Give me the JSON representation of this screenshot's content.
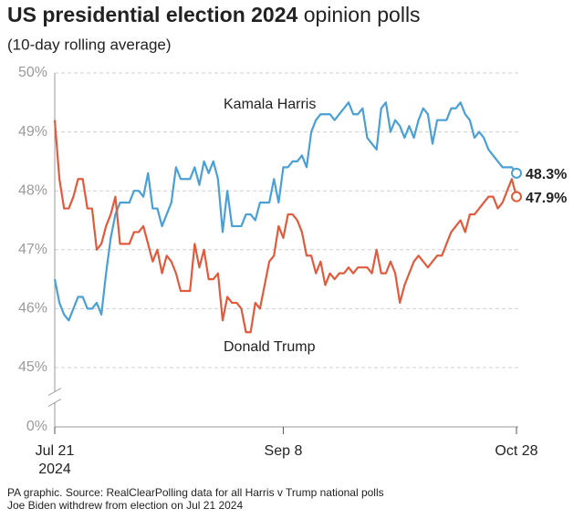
{
  "chart_data": {
    "type": "line",
    "title": {
      "bold": "US presidential election 2024",
      "regular": "opinion polls"
    },
    "subtitle": "(10-day rolling average)",
    "xlim": [
      "2024-07-21",
      "2024-10-28"
    ],
    "xticks": [
      {
        "value": "2024-07-21",
        "label": "Jul 21"
      },
      {
        "value": "2024-09-08",
        "label": "Sep 8"
      },
      {
        "value": "2024-10-28",
        "label": "Oct 28"
      }
    ],
    "x_year_label": "2024",
    "ylim": [
      45,
      50
    ],
    "yticks": [
      {
        "value": 0,
        "label": "0%"
      },
      {
        "value": 45,
        "label": "45%"
      },
      {
        "value": 46,
        "label": "46%"
      },
      {
        "value": 47,
        "label": "47%"
      },
      {
        "value": 48,
        "label": "48%"
      },
      {
        "value": 49,
        "label": "49%"
      },
      {
        "value": 50,
        "label": "50%"
      }
    ],
    "axis_break": true,
    "grid": true,
    "x": [
      "2024-07-21",
      "2024-07-22",
      "2024-07-23",
      "2024-07-24",
      "2024-07-25",
      "2024-07-26",
      "2024-07-27",
      "2024-07-28",
      "2024-07-29",
      "2024-07-30",
      "2024-07-31",
      "2024-08-01",
      "2024-08-02",
      "2024-08-03",
      "2024-08-04",
      "2024-08-05",
      "2024-08-06",
      "2024-08-07",
      "2024-08-08",
      "2024-08-09",
      "2024-08-10",
      "2024-08-11",
      "2024-08-12",
      "2024-08-13",
      "2024-08-14",
      "2024-08-15",
      "2024-08-16",
      "2024-08-17",
      "2024-08-18",
      "2024-08-19",
      "2024-08-20",
      "2024-08-21",
      "2024-08-22",
      "2024-08-23",
      "2024-08-24",
      "2024-08-25",
      "2024-08-26",
      "2024-08-27",
      "2024-08-28",
      "2024-08-29",
      "2024-08-30",
      "2024-08-31",
      "2024-09-01",
      "2024-09-02",
      "2024-09-03",
      "2024-09-04",
      "2024-09-05",
      "2024-09-06",
      "2024-09-07",
      "2024-09-08",
      "2024-09-09",
      "2024-09-10",
      "2024-09-11",
      "2024-09-12",
      "2024-09-13",
      "2024-09-14",
      "2024-09-15",
      "2024-09-16",
      "2024-09-17",
      "2024-09-18",
      "2024-09-19",
      "2024-09-20",
      "2024-09-21",
      "2024-09-22",
      "2024-09-23",
      "2024-09-24",
      "2024-09-25",
      "2024-09-26",
      "2024-09-27",
      "2024-09-28",
      "2024-09-29",
      "2024-09-30",
      "2024-10-01",
      "2024-10-02",
      "2024-10-03",
      "2024-10-04",
      "2024-10-05",
      "2024-10-06",
      "2024-10-07",
      "2024-10-08",
      "2024-10-09",
      "2024-10-10",
      "2024-10-11",
      "2024-10-12",
      "2024-10-13",
      "2024-10-14",
      "2024-10-15",
      "2024-10-16",
      "2024-10-17",
      "2024-10-18",
      "2024-10-19",
      "2024-10-20",
      "2024-10-21",
      "2024-10-22",
      "2024-10-23",
      "2024-10-24",
      "2024-10-25",
      "2024-10-26",
      "2024-10-27",
      "2024-10-28"
    ],
    "series": [
      {
        "name": "Kamala Harris",
        "color": "#4a9fd5",
        "values": [
          46.5,
          46.1,
          45.9,
          45.8,
          46.0,
          46.2,
          46.2,
          46.0,
          46.0,
          46.1,
          45.9,
          46.6,
          47.2,
          47.6,
          47.8,
          47.8,
          47.8,
          48.0,
          48.0,
          47.9,
          48.3,
          47.7,
          47.7,
          47.4,
          47.6,
          47.8,
          48.4,
          48.2,
          48.2,
          48.2,
          48.4,
          48.1,
          48.5,
          48.3,
          48.5,
          48.2,
          47.3,
          48.0,
          47.4,
          47.4,
          47.4,
          47.6,
          47.6,
          47.5,
          47.8,
          47.8,
          47.8,
          48.2,
          47.8,
          48.4,
          48.4,
          48.5,
          48.5,
          48.6,
          48.4,
          49.0,
          49.2,
          49.3,
          49.3,
          49.3,
          49.2,
          49.3,
          49.4,
          49.5,
          49.3,
          49.3,
          49.4,
          48.9,
          48.8,
          48.7,
          49.4,
          49.5,
          49.0,
          49.2,
          49.1,
          48.9,
          49.1,
          48.9,
          49.2,
          49.4,
          49.3,
          48.8,
          49.2,
          49.2,
          49.2,
          49.4,
          49.4,
          49.5,
          49.3,
          49.2,
          48.9,
          49.0,
          48.9,
          48.7,
          48.6,
          48.5,
          48.4,
          48.4,
          48.4,
          48.3
        ],
        "value_labels": [
          null,
          null,
          null,
          null,
          null,
          null,
          null,
          null,
          null,
          null,
          null,
          null,
          null,
          null,
          null,
          null,
          null,
          null,
          null,
          null,
          null,
          null,
          null,
          null,
          null,
          null,
          null,
          null,
          null,
          null,
          null,
          null,
          null,
          null,
          null,
          null,
          null,
          null,
          null,
          null,
          null,
          null,
          null,
          null,
          null,
          null,
          null,
          null,
          null,
          null,
          null,
          null,
          null,
          null,
          null,
          null,
          null,
          null,
          null,
          null,
          null,
          null,
          null,
          null,
          null,
          null,
          null,
          null,
          null,
          null,
          null,
          null,
          null,
          null,
          null,
          null,
          null,
          null,
          null,
          null,
          null,
          null,
          null,
          null,
          null,
          null,
          null,
          null,
          null,
          null,
          null,
          null,
          null,
          null,
          null,
          null,
          null,
          null,
          null,
          "48.3%"
        ]
      },
      {
        "name": "Donald Trump",
        "color": "#e05a3c",
        "values": [
          49.2,
          48.2,
          47.7,
          47.7,
          47.9,
          48.2,
          48.2,
          47.7,
          47.7,
          47.0,
          47.1,
          47.4,
          47.6,
          47.9,
          47.1,
          47.1,
          47.1,
          47.3,
          47.3,
          47.4,
          47.1,
          46.8,
          47.0,
          46.6,
          46.9,
          46.8,
          46.6,
          46.3,
          46.3,
          46.3,
          47.1,
          46.7,
          47.0,
          46.5,
          46.5,
          46.6,
          45.8,
          46.2,
          46.1,
          46.1,
          46.0,
          45.6,
          45.6,
          46.1,
          46.0,
          46.4,
          46.8,
          46.9,
          47.4,
          47.2,
          47.6,
          47.6,
          47.5,
          47.3,
          46.9,
          46.9,
          46.6,
          46.8,
          46.4,
          46.6,
          46.5,
          46.6,
          46.6,
          46.7,
          46.6,
          46.7,
          46.7,
          46.7,
          46.6,
          47.0,
          46.6,
          46.6,
          46.8,
          46.6,
          46.1,
          46.4,
          46.6,
          46.8,
          46.9,
          46.8,
          46.7,
          46.8,
          46.9,
          46.9,
          47.1,
          47.3,
          47.4,
          47.5,
          47.3,
          47.6,
          47.6,
          47.7,
          47.8,
          47.9,
          47.9,
          47.7,
          47.8,
          48.0,
          48.2,
          47.9
        ],
        "value_labels": [
          null,
          null,
          null,
          null,
          null,
          null,
          null,
          null,
          null,
          null,
          null,
          null,
          null,
          null,
          null,
          null,
          null,
          null,
          null,
          null,
          null,
          null,
          null,
          null,
          null,
          null,
          null,
          null,
          null,
          null,
          null,
          null,
          null,
          null,
          null,
          null,
          null,
          null,
          null,
          null,
          null,
          null,
          null,
          null,
          null,
          null,
          null,
          null,
          null,
          null,
          null,
          null,
          null,
          null,
          null,
          null,
          null,
          null,
          null,
          null,
          null,
          null,
          null,
          null,
          null,
          null,
          null,
          null,
          null,
          null,
          null,
          null,
          null,
          null,
          null,
          null,
          null,
          null,
          null,
          null,
          null,
          null,
          null,
          null,
          null,
          null,
          null,
          null,
          null,
          null,
          null,
          null,
          null,
          null,
          null,
          null,
          null,
          null,
          null,
          "47.9%"
        ]
      }
    ],
    "notes": [
      "PA graphic. Source: RealClearPolling data for all Harris v Trump national polls",
      "Joe Biden withdrew from election on Jul 21 2024"
    ]
  }
}
